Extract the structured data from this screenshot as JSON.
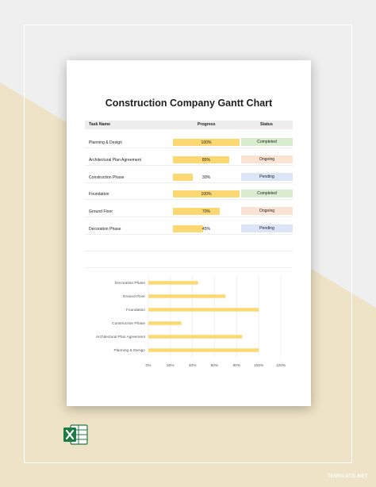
{
  "document": {
    "title": "Construction Company Gantt Chart",
    "headers": {
      "task": "Task Name",
      "progress": "Progress",
      "status": "Status"
    },
    "rows": [
      {
        "task": "Planning & Design",
        "progress": 100,
        "progress_label": "100%",
        "status": "Completed",
        "status_color": "#d9ecd0"
      },
      {
        "task": "Architectural Plan Agreement",
        "progress": 85,
        "progress_label": "85%",
        "status": "Ongoing",
        "status_color": "#fbe3d3"
      },
      {
        "task": "Construction Phase",
        "progress": 30,
        "progress_label": "30%",
        "status": "Pending",
        "status_color": "#dbe5f5"
      },
      {
        "task": "Foundation",
        "progress": 100,
        "progress_label": "100%",
        "status": "Completed",
        "status_color": "#d9ecd0"
      },
      {
        "task": "Ground Floor",
        "progress": 70,
        "progress_label": "70%",
        "status": "Ongoing",
        "status_color": "#fbe3d3"
      },
      {
        "task": "Decoration Phase",
        "progress": 45,
        "progress_label": "45%",
        "status": "Pending",
        "status_color": "#dbe5f5"
      }
    ],
    "bar_color": "#fbd872"
  },
  "chart_data": {
    "type": "bar",
    "orientation": "horizontal",
    "categories": [
      "Decoration Phase",
      "Ground Floor",
      "Foundation",
      "Construction Phase",
      "Architectural Plan Agreement",
      "Planning & Design"
    ],
    "values": [
      45,
      70,
      100,
      30,
      85,
      100
    ],
    "xlim": [
      0,
      120
    ],
    "xticks": [
      "0%",
      "20%",
      "40%",
      "60%",
      "80%",
      "100%",
      "120%"
    ],
    "grid": true,
    "bar_color": "#fbd872"
  },
  "branding": {
    "watermark": "TEMPLATE.NET",
    "app_icon": "excel-icon"
  },
  "colors": {
    "background": "#efefef",
    "accent_triangle": "#eee3c6"
  }
}
